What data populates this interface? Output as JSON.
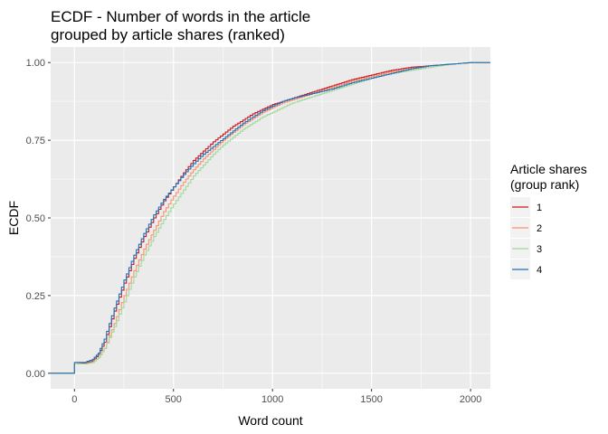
{
  "chart_data": {
    "type": "line",
    "step": true,
    "title_lines": [
      "ECDF - Number of words in the article",
      "grouped by article shares (ranked)"
    ],
    "xlabel": "Word count",
    "ylabel": "ECDF",
    "xlim": [
      -120,
      2100
    ],
    "ylim": [
      -0.05,
      1.05
    ],
    "xticks": [
      0,
      500,
      1000,
      1500,
      2000
    ],
    "xtick_labels": [
      "0",
      "500",
      "1000",
      "1500",
      "2000"
    ],
    "yticks": [
      0,
      0.25,
      0.5,
      0.75,
      1
    ],
    "ytick_labels": [
      "0.00",
      "0.25",
      "0.50",
      "0.75",
      "1.00"
    ],
    "grid": true,
    "background": "#ebebeb",
    "legend": {
      "title_lines": [
        "Article shares",
        "(group rank)"
      ],
      "position": "right"
    },
    "series": [
      {
        "name": "1",
        "color": "#cb181d",
        "points": [
          [
            -120,
            0
          ],
          [
            0,
            0
          ],
          [
            0,
            0.03
          ],
          [
            50,
            0.032
          ],
          [
            90,
            0.04
          ],
          [
            120,
            0.06
          ],
          [
            150,
            0.1
          ],
          [
            200,
            0.2
          ],
          [
            250,
            0.29
          ],
          [
            300,
            0.37
          ],
          [
            350,
            0.44
          ],
          [
            400,
            0.5
          ],
          [
            450,
            0.555
          ],
          [
            500,
            0.6
          ],
          [
            550,
            0.645
          ],
          [
            600,
            0.685
          ],
          [
            650,
            0.715
          ],
          [
            700,
            0.745
          ],
          [
            750,
            0.77
          ],
          [
            800,
            0.795
          ],
          [
            850,
            0.815
          ],
          [
            900,
            0.835
          ],
          [
            950,
            0.85
          ],
          [
            1000,
            0.865
          ],
          [
            1050,
            0.875
          ],
          [
            1100,
            0.885
          ],
          [
            1200,
            0.905
          ],
          [
            1300,
            0.925
          ],
          [
            1400,
            0.945
          ],
          [
            1500,
            0.96
          ],
          [
            1600,
            0.975
          ],
          [
            1700,
            0.985
          ],
          [
            1800,
            0.99
          ],
          [
            1900,
            0.995
          ],
          [
            2000,
            1.0
          ],
          [
            2100,
            1.0
          ]
        ]
      },
      {
        "name": "2",
        "color": "#fc9272",
        "points": [
          [
            -120,
            0
          ],
          [
            0,
            0
          ],
          [
            0,
            0.03
          ],
          [
            50,
            0.03
          ],
          [
            90,
            0.035
          ],
          [
            120,
            0.05
          ],
          [
            150,
            0.08
          ],
          [
            200,
            0.16
          ],
          [
            250,
            0.25
          ],
          [
            300,
            0.33
          ],
          [
            350,
            0.4
          ],
          [
            400,
            0.46
          ],
          [
            450,
            0.52
          ],
          [
            500,
            0.57
          ],
          [
            550,
            0.615
          ],
          [
            600,
            0.655
          ],
          [
            650,
            0.69
          ],
          [
            700,
            0.72
          ],
          [
            750,
            0.75
          ],
          [
            800,
            0.775
          ],
          [
            850,
            0.8
          ],
          [
            900,
            0.82
          ],
          [
            950,
            0.84
          ],
          [
            1000,
            0.855
          ],
          [
            1050,
            0.87
          ],
          [
            1100,
            0.88
          ],
          [
            1200,
            0.9
          ],
          [
            1300,
            0.92
          ],
          [
            1400,
            0.94
          ],
          [
            1500,
            0.955
          ],
          [
            1600,
            0.97
          ],
          [
            1700,
            0.98
          ],
          [
            1800,
            0.99
          ],
          [
            1900,
            0.995
          ],
          [
            2000,
            1.0
          ],
          [
            2100,
            1.0
          ]
        ]
      },
      {
        "name": "3",
        "color": "#a1d99b",
        "points": [
          [
            -120,
            0
          ],
          [
            0,
            0
          ],
          [
            0,
            0.03
          ],
          [
            50,
            0.03
          ],
          [
            90,
            0.035
          ],
          [
            120,
            0.05
          ],
          [
            150,
            0.08
          ],
          [
            200,
            0.15
          ],
          [
            250,
            0.23
          ],
          [
            300,
            0.31
          ],
          [
            350,
            0.38
          ],
          [
            400,
            0.44
          ],
          [
            450,
            0.495
          ],
          [
            500,
            0.545
          ],
          [
            550,
            0.59
          ],
          [
            600,
            0.635
          ],
          [
            650,
            0.67
          ],
          [
            700,
            0.705
          ],
          [
            750,
            0.735
          ],
          [
            800,
            0.76
          ],
          [
            850,
            0.785
          ],
          [
            900,
            0.805
          ],
          [
            950,
            0.825
          ],
          [
            1000,
            0.84
          ],
          [
            1050,
            0.855
          ],
          [
            1100,
            0.87
          ],
          [
            1200,
            0.89
          ],
          [
            1300,
            0.91
          ],
          [
            1400,
            0.93
          ],
          [
            1500,
            0.95
          ],
          [
            1600,
            0.965
          ],
          [
            1700,
            0.975
          ],
          [
            1800,
            0.985
          ],
          [
            1900,
            0.995
          ],
          [
            2000,
            1.0
          ],
          [
            2100,
            1.0
          ]
        ]
      },
      {
        "name": "4",
        "color": "#2171b5",
        "points": [
          [
            -120,
            0
          ],
          [
            0,
            0
          ],
          [
            0,
            0.035
          ],
          [
            50,
            0.035
          ],
          [
            90,
            0.045
          ],
          [
            120,
            0.065
          ],
          [
            150,
            0.11
          ],
          [
            200,
            0.21
          ],
          [
            250,
            0.3
          ],
          [
            300,
            0.38
          ],
          [
            350,
            0.45
          ],
          [
            400,
            0.51
          ],
          [
            450,
            0.56
          ],
          [
            500,
            0.6
          ],
          [
            550,
            0.64
          ],
          [
            600,
            0.675
          ],
          [
            650,
            0.705
          ],
          [
            700,
            0.73
          ],
          [
            750,
            0.755
          ],
          [
            800,
            0.78
          ],
          [
            850,
            0.805
          ],
          [
            900,
            0.825
          ],
          [
            950,
            0.845
          ],
          [
            1000,
            0.86
          ],
          [
            1050,
            0.875
          ],
          [
            1100,
            0.885
          ],
          [
            1200,
            0.9
          ],
          [
            1300,
            0.915
          ],
          [
            1400,
            0.935
          ],
          [
            1500,
            0.95
          ],
          [
            1600,
            0.965
          ],
          [
            1700,
            0.98
          ],
          [
            1800,
            0.99
          ],
          [
            1900,
            0.995
          ],
          [
            2000,
            1.0
          ],
          [
            2100,
            1.0
          ]
        ]
      }
    ]
  }
}
